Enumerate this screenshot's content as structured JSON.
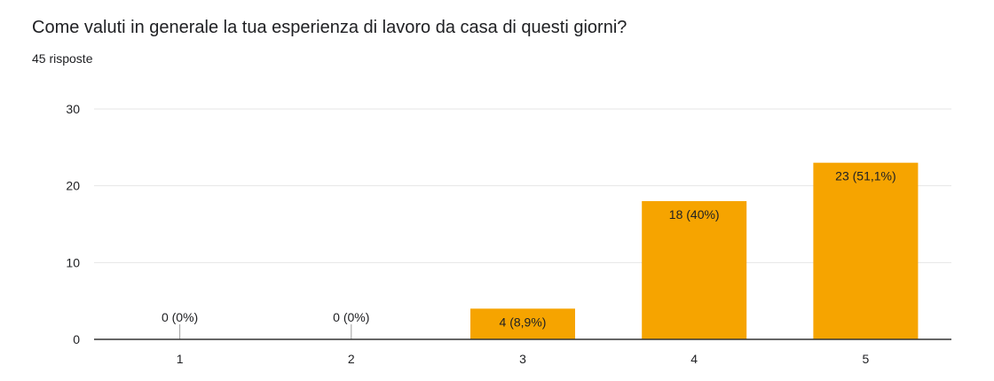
{
  "question": "Come valuti in generale la tua esperienza di lavoro da casa di questi giorni?",
  "response_count": "45 risposte",
  "chart_data": {
    "type": "bar",
    "title": "",
    "xlabel": "",
    "ylabel": "",
    "categories": [
      "1",
      "2",
      "3",
      "4",
      "5"
    ],
    "values": [
      0,
      0,
      4,
      18,
      23
    ],
    "data_labels": [
      "0 (0%)",
      "0 (0%)",
      "4 (8,9%)",
      "18 (40%)",
      "23 (51,1%)"
    ],
    "ylim": [
      0,
      30
    ],
    "yticks": [
      "0",
      "10",
      "20",
      "30"
    ],
    "grid": true,
    "legend": "none",
    "bar_color": "#f6a400",
    "grid_color": "#e6e6e6",
    "axis_color": "#333333"
  }
}
